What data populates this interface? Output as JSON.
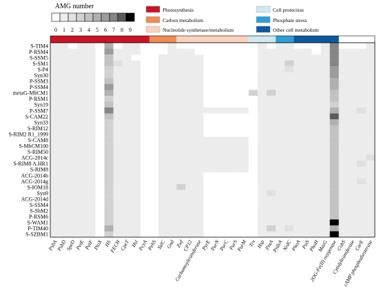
{
  "chart_data": {
    "type": "heatmap",
    "title": "",
    "colorbar": {
      "title": "AMG number",
      "ticks": [
        "0",
        "1",
        "2",
        "3",
        "4",
        "5",
        "6",
        "7",
        "8",
        "9"
      ],
      "colors": [
        "#ffffff",
        "#ececec",
        "#e0e0e0",
        "#d1d1d1",
        "#c2c2c2",
        "#b0b0b0",
        "#9b9b9b",
        "#858585",
        "#5c5c5c",
        "#000000"
      ]
    },
    "legend": {
      "placement": "top",
      "items": [
        {
          "name": "Photosynthesis",
          "color": "#cc1424"
        },
        {
          "name": "Carbon metabolism",
          "color": "#f28a55"
        },
        {
          "name": "Nucleotide synthetase/metabolism",
          "color": "#fbd2bd"
        },
        {
          "name": "Cell protection",
          "color": "#d0e8f2"
        },
        {
          "name": "Phosphate stress",
          "color": "#2fa0d5"
        },
        {
          "name": "Other cell metabolism",
          "color": "#0d5aa0"
        }
      ]
    },
    "group_bar": [
      {
        "group": "Photosynthesis",
        "start": 0,
        "end": 10
      },
      {
        "group": "Carbon metabolism",
        "start": 11,
        "end": 13
      },
      {
        "group": "Nucleotide synthetase/metabolism",
        "start": 14,
        "end": 21
      },
      {
        "group": "Cell protection",
        "start": 22,
        "end": 24
      },
      {
        "group": "Phosphate stress",
        "start": 25,
        "end": 26
      },
      {
        "group": "Other cell metabolism",
        "start": 27,
        "end": 31
      }
    ],
    "genes": [
      "PsbA",
      "PsbD",
      "SpeD",
      "PetE",
      "PetF",
      "PtoX",
      "Hli",
      "FECH",
      "CpeT",
      "Hsl",
      "PcyA",
      "PebS",
      "TalC",
      "Gnd",
      "Zwf",
      "CP12",
      "Carbamoyltransferase",
      "PyrE",
      "PurN",
      "PurC",
      "PurS",
      "PurM",
      "Trx",
      "Hsp",
      "PntA",
      "PrdxA",
      "NrdC",
      "PhoA",
      "PstS",
      "PhoH",
      "MazG",
      "2OG-Fe(II) oxygenase",
      "CobS",
      "Cytidyltransferase",
      "CarE",
      "cAMP phosphodiesterase"
    ],
    "strains": [
      "S-TIM4",
      "P-RSM4",
      "S-SSM5",
      "S-SM1",
      "S-P4",
      "Syn30",
      "P-SSM3",
      "P-SSM4",
      "metaG-MbCM1",
      "P-RSM1",
      "Syn19",
      "P-SSM7",
      "S-CAM22",
      "Syn33",
      "S-RIM12",
      "S-RIM2 R1_1999",
      "S-CAM8",
      "S-MbCM100",
      "S-RIM50",
      "ACG-2014c",
      "S-RIM8 A.HR1",
      "S-RIM8",
      "ACG-2014b",
      "ACG-2014g",
      "S-IOM18",
      "Syn9",
      "ACG-2014d",
      "S-SSM4",
      "S-ShM2",
      "P-RSM6",
      "S-WAM1",
      "P-TIM40",
      "S-SZBM1"
    ],
    "values": [
      [
        1,
        1,
        0,
        1,
        1,
        0,
        5,
        0,
        1,
        1,
        0,
        0,
        0,
        1,
        0,
        0,
        0,
        0,
        0,
        0,
        0,
        0,
        0,
        1,
        0,
        1,
        1,
        0,
        0,
        0,
        1,
        7,
        0,
        0,
        0,
        1
      ],
      [
        1,
        1,
        1,
        1,
        1,
        0,
        6,
        1,
        1,
        1,
        0,
        0,
        0,
        1,
        1,
        1,
        0,
        0,
        0,
        0,
        0,
        0,
        0,
        1,
        1,
        1,
        1,
        1,
        1,
        0,
        1,
        7,
        1,
        1,
        1,
        1
      ],
      [
        1,
        1,
        1,
        1,
        1,
        0,
        4,
        1,
        1,
        0,
        0,
        0,
        1,
        1,
        1,
        1,
        1,
        0,
        0,
        0,
        0,
        0,
        0,
        1,
        1,
        1,
        1,
        1,
        1,
        1,
        1,
        7,
        1,
        1,
        1,
        1
      ],
      [
        1,
        1,
        1,
        1,
        1,
        0,
        4,
        2,
        1,
        1,
        0,
        0,
        1,
        1,
        1,
        1,
        1,
        0,
        0,
        0,
        0,
        0,
        0,
        1,
        1,
        1,
        3,
        1,
        1,
        1,
        1,
        7,
        1,
        1,
        1,
        1
      ],
      [
        1,
        1,
        1,
        1,
        1,
        0,
        3,
        1,
        1,
        1,
        0,
        0,
        1,
        1,
        1,
        1,
        1,
        0,
        0,
        0,
        0,
        0,
        0,
        1,
        1,
        1,
        2,
        1,
        1,
        1,
        1,
        6,
        1,
        1,
        1,
        1
      ],
      [
        1,
        1,
        1,
        1,
        1,
        0,
        3,
        1,
        1,
        1,
        0,
        0,
        1,
        1,
        1,
        1,
        1,
        0,
        0,
        0,
        0,
        0,
        0,
        1,
        1,
        1,
        1,
        1,
        1,
        1,
        1,
        6,
        1,
        1,
        1,
        1
      ],
      [
        1,
        1,
        1,
        1,
        1,
        0,
        4,
        1,
        1,
        1,
        0,
        0,
        1,
        1,
        1,
        1,
        1,
        0,
        0,
        0,
        0,
        0,
        0,
        1,
        1,
        1,
        1,
        1,
        1,
        1,
        1,
        5,
        1,
        1,
        1,
        1
      ],
      [
        1,
        1,
        1,
        1,
        1,
        0,
        6,
        1,
        1,
        1,
        0,
        0,
        1,
        1,
        1,
        1,
        1,
        0,
        0,
        0,
        0,
        0,
        0,
        1,
        1,
        1,
        1,
        1,
        1,
        1,
        1,
        5,
        1,
        1,
        1,
        1
      ],
      [
        1,
        1,
        1,
        1,
        1,
        0,
        5,
        1,
        1,
        1,
        0,
        0,
        1,
        1,
        1,
        1,
        1,
        0,
        0,
        0,
        0,
        0,
        3,
        1,
        3,
        1,
        1,
        1,
        1,
        1,
        1,
        4,
        1,
        1,
        1,
        1
      ],
      [
        1,
        1,
        1,
        1,
        1,
        0,
        3,
        1,
        1,
        1,
        0,
        0,
        1,
        1,
        1,
        1,
        1,
        0,
        0,
        0,
        0,
        0,
        0,
        1,
        1,
        1,
        1,
        1,
        1,
        1,
        1,
        4,
        1,
        1,
        1,
        1
      ],
      [
        1,
        1,
        1,
        1,
        1,
        0,
        4,
        1,
        1,
        1,
        0,
        0,
        1,
        1,
        1,
        1,
        1,
        0,
        0,
        0,
        0,
        0,
        0,
        1,
        1,
        1,
        1,
        1,
        1,
        1,
        1,
        3,
        1,
        1,
        1,
        1
      ],
      [
        1,
        1,
        1,
        1,
        1,
        0,
        7,
        1,
        1,
        1,
        0,
        0,
        1,
        1,
        1,
        1,
        1,
        1,
        1,
        1,
        1,
        1,
        0,
        1,
        1,
        1,
        1,
        1,
        1,
        1,
        1,
        5,
        1,
        1,
        2,
        1
      ],
      [
        1,
        1,
        1,
        1,
        1,
        0,
        4,
        1,
        1,
        1,
        0,
        0,
        1,
        1,
        1,
        1,
        1,
        0,
        0,
        0,
        0,
        0,
        0,
        1,
        1,
        1,
        1,
        1,
        1,
        1,
        1,
        8,
        1,
        1,
        1,
        1
      ],
      [
        1,
        1,
        1,
        1,
        1,
        0,
        3,
        1,
        1,
        1,
        0,
        0,
        1,
        1,
        1,
        1,
        1,
        0,
        0,
        0,
        0,
        0,
        0,
        1,
        1,
        1,
        1,
        1,
        1,
        1,
        1,
        5,
        1,
        1,
        1,
        1
      ],
      [
        1,
        1,
        1,
        1,
        1,
        0,
        3,
        1,
        1,
        1,
        0,
        0,
        1,
        1,
        1,
        1,
        1,
        0,
        0,
        0,
        0,
        0,
        0,
        1,
        1,
        1,
        1,
        1,
        1,
        1,
        1,
        4,
        1,
        1,
        1,
        1
      ],
      [
        1,
        1,
        1,
        1,
        1,
        0,
        3,
        1,
        1,
        1,
        0,
        0,
        1,
        1,
        1,
        1,
        1,
        0,
        0,
        0,
        0,
        0,
        0,
        1,
        1,
        1,
        1,
        1,
        1,
        1,
        1,
        4,
        1,
        1,
        1,
        1
      ],
      [
        1,
        1,
        1,
        1,
        1,
        0,
        3,
        1,
        1,
        1,
        0,
        0,
        1,
        1,
        1,
        1,
        1,
        1,
        1,
        1,
        1,
        1,
        0,
        1,
        1,
        1,
        1,
        1,
        1,
        1,
        1,
        4,
        1,
        1,
        1,
        1
      ],
      [
        1,
        1,
        1,
        1,
        1,
        0,
        3,
        1,
        1,
        1,
        0,
        0,
        1,
        1,
        1,
        1,
        1,
        1,
        1,
        1,
        1,
        1,
        0,
        1,
        1,
        1,
        1,
        1,
        1,
        1,
        1,
        4,
        1,
        1,
        1,
        1
      ],
      [
        1,
        1,
        1,
        1,
        1,
        0,
        3,
        1,
        1,
        1,
        0,
        0,
        1,
        1,
        1,
        1,
        1,
        1,
        1,
        1,
        1,
        1,
        0,
        1,
        1,
        1,
        1,
        1,
        1,
        1,
        1,
        4,
        1,
        1,
        1,
        1
      ],
      [
        1,
        1,
        1,
        1,
        1,
        0,
        3,
        1,
        1,
        1,
        0,
        0,
        1,
        1,
        1,
        1,
        1,
        1,
        1,
        1,
        1,
        1,
        0,
        1,
        1,
        1,
        1,
        1,
        1,
        1,
        1,
        4,
        1,
        1,
        1,
        2
      ],
      [
        1,
        1,
        1,
        1,
        1,
        0,
        3,
        1,
        1,
        1,
        0,
        0,
        1,
        1,
        1,
        1,
        1,
        1,
        1,
        1,
        1,
        1,
        0,
        1,
        1,
        1,
        1,
        1,
        1,
        1,
        1,
        4,
        1,
        1,
        2,
        1
      ],
      [
        1,
        1,
        1,
        1,
        1,
        0,
        3,
        1,
        1,
        1,
        0,
        0,
        1,
        1,
        1,
        1,
        1,
        1,
        1,
        1,
        1,
        1,
        0,
        1,
        1,
        1,
        1,
        1,
        1,
        1,
        1,
        4,
        1,
        1,
        1,
        1
      ],
      [
        1,
        1,
        1,
        1,
        1,
        0,
        3,
        1,
        1,
        1,
        0,
        0,
        1,
        1,
        1,
        1,
        1,
        0,
        0,
        0,
        0,
        0,
        0,
        1,
        1,
        1,
        1,
        1,
        1,
        1,
        1,
        4,
        1,
        1,
        1,
        1
      ],
      [
        1,
        1,
        1,
        1,
        1,
        0,
        3,
        1,
        1,
        1,
        0,
        0,
        1,
        1,
        1,
        1,
        1,
        0,
        0,
        0,
        0,
        0,
        0,
        1,
        1,
        1,
        1,
        1,
        1,
        1,
        1,
        4,
        1,
        1,
        2,
        1
      ],
      [
        1,
        1,
        1,
        1,
        1,
        0,
        3,
        1,
        1,
        1,
        0,
        0,
        1,
        1,
        3,
        1,
        1,
        0,
        0,
        0,
        0,
        0,
        0,
        1,
        1,
        1,
        1,
        1,
        1,
        1,
        1,
        4,
        1,
        1,
        1,
        1
      ],
      [
        1,
        1,
        1,
        1,
        1,
        0,
        3,
        1,
        1,
        1,
        0,
        0,
        1,
        1,
        1,
        1,
        1,
        0,
        0,
        0,
        0,
        0,
        0,
        1,
        2,
        1,
        1,
        1,
        1,
        1,
        1,
        4,
        1,
        1,
        1,
        1
      ],
      [
        1,
        1,
        1,
        1,
        1,
        0,
        3,
        1,
        1,
        1,
        0,
        0,
        1,
        1,
        1,
        1,
        1,
        0,
        0,
        0,
        0,
        0,
        0,
        1,
        1,
        1,
        1,
        1,
        1,
        1,
        1,
        4,
        1,
        1,
        1,
        1
      ],
      [
        1,
        1,
        1,
        1,
        1,
        0,
        3,
        1,
        1,
        1,
        0,
        0,
        1,
        1,
        1,
        1,
        1,
        0,
        0,
        0,
        0,
        0,
        0,
        1,
        1,
        1,
        1,
        1,
        1,
        1,
        1,
        4,
        1,
        1,
        1,
        1
      ],
      [
        1,
        1,
        1,
        1,
        1,
        0,
        3,
        1,
        1,
        1,
        0,
        0,
        1,
        1,
        1,
        1,
        1,
        0,
        0,
        0,
        0,
        0,
        0,
        1,
        1,
        1,
        1,
        1,
        1,
        1,
        1,
        4,
        1,
        1,
        1,
        1
      ],
      [
        1,
        1,
        1,
        1,
        1,
        0,
        3,
        1,
        1,
        1,
        0,
        0,
        1,
        1,
        1,
        1,
        1,
        0,
        0,
        0,
        0,
        0,
        0,
        1,
        1,
        1,
        1,
        1,
        1,
        1,
        1,
        4,
        1,
        1,
        1,
        1
      ],
      [
        1,
        1,
        1,
        1,
        1,
        0,
        3,
        1,
        1,
        1,
        0,
        0,
        1,
        1,
        1,
        1,
        1,
        0,
        0,
        0,
        0,
        0,
        0,
        1,
        1,
        1,
        1,
        1,
        1,
        1,
        1,
        9,
        1,
        1,
        1,
        1
      ],
      [
        1,
        1,
        1,
        1,
        1,
        0,
        5,
        1,
        1,
        1,
        0,
        0,
        1,
        1,
        1,
        1,
        1,
        0,
        0,
        0,
        0,
        0,
        0,
        1,
        3,
        1,
        2,
        1,
        1,
        1,
        1,
        5,
        1,
        1,
        1,
        1
      ],
      [
        1,
        1,
        1,
        1,
        1,
        0,
        3,
        1,
        1,
        1,
        0,
        0,
        1,
        1,
        1,
        1,
        1,
        0,
        0,
        0,
        0,
        0,
        0,
        1,
        1,
        1,
        1,
        1,
        1,
        1,
        1,
        9,
        1,
        1,
        1,
        1
      ]
    ]
  }
}
